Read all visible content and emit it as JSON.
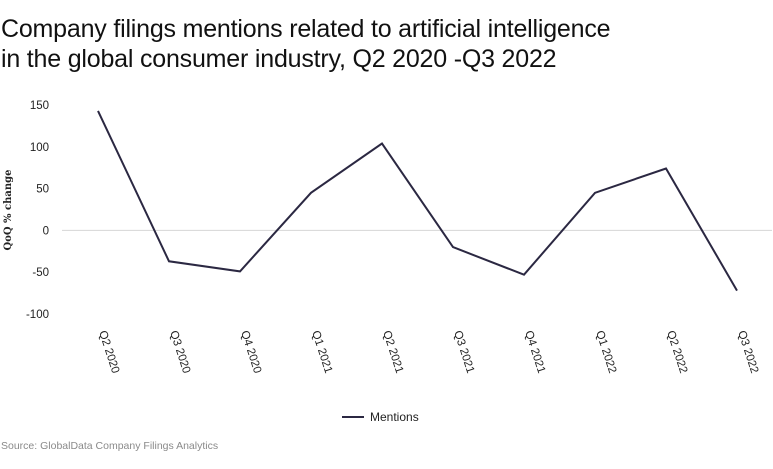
{
  "chart_data": {
    "type": "line",
    "title_lines": [
      "Company filings mentions related to artificial intelligence",
      "in the global consumer industry, Q2 2020 -Q3 2022"
    ],
    "ylabel": "QoQ % change",
    "xlabel": "",
    "categories": [
      "Q2 2020",
      "Q3 2020",
      "Q4 2020",
      "Q1 2021",
      "Q2 2021",
      "Q3 2021",
      "Q4 2021",
      "Q1 2022",
      "Q2 2022",
      "Q3 2022"
    ],
    "series": [
      {
        "name": "Mentions",
        "color": "#2b2842",
        "values": [
          143,
          -37,
          -49,
          45,
          104,
          -20,
          -53,
          45,
          74,
          -72
        ]
      }
    ],
    "yticks": [
      150,
      100,
      50,
      0,
      -50,
      -100
    ],
    "ytick_labels": [
      "150",
      "100",
      "50",
      "0",
      "-50",
      "-100"
    ],
    "ylim": [
      -100,
      150
    ],
    "zero_line": true,
    "legend_position": "bottom-center",
    "source": "Source: GlobalData Company Filings Analytics"
  }
}
